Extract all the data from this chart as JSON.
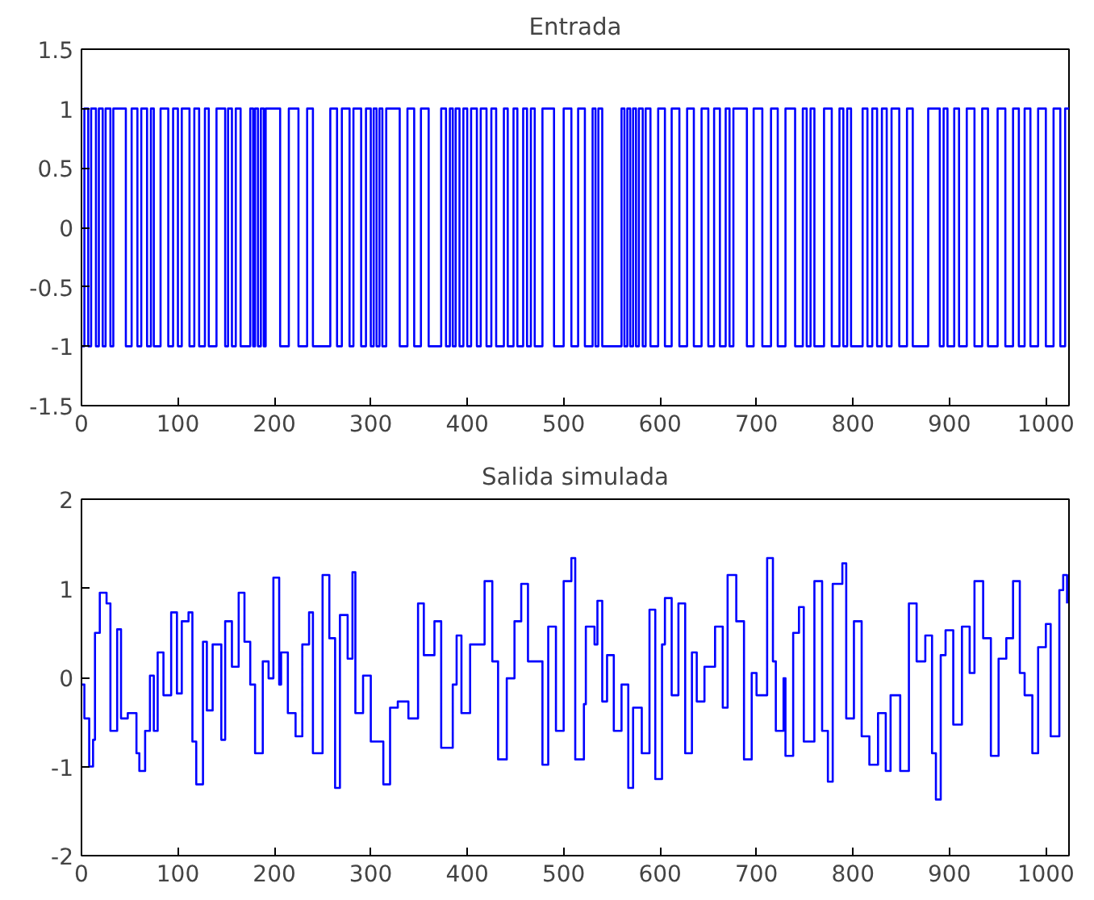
{
  "chart_data": [
    {
      "type": "step",
      "title": "Entrada",
      "xlim": [
        0,
        1024
      ],
      "ylim": [
        -1.5,
        1.5
      ],
      "xticks": [
        0,
        100,
        200,
        300,
        400,
        500,
        600,
        700,
        800,
        900,
        1000
      ],
      "yticks": [
        -1.5,
        -1,
        -0.5,
        0,
        0.5,
        1,
        1.5
      ],
      "grid": false,
      "series": [
        {
          "color": "#0000ff",
          "x": [
            0,
            3,
            7,
            10,
            15,
            18,
            22,
            25,
            30,
            33,
            46,
            52,
            58,
            62,
            68,
            72,
            75,
            82,
            90,
            95,
            100,
            104,
            112,
            117,
            122,
            128,
            132,
            140,
            149,
            152,
            156,
            160,
            165,
            175,
            178,
            180,
            183,
            186,
            189,
            191,
            206,
            215,
            225,
            234,
            240,
            258,
            265,
            270,
            278,
            282,
            290,
            295,
            300,
            303,
            306,
            309,
            312,
            316,
            330,
            338,
            345,
            352,
            360,
            373,
            378,
            382,
            385,
            388,
            392,
            396,
            400,
            404,
            410,
            414,
            420,
            425,
            430,
            438,
            442,
            448,
            452,
            458,
            462,
            466,
            470,
            478,
            490,
            500,
            508,
            515,
            522,
            530,
            533,
            536,
            540,
            560,
            563,
            566,
            569,
            572,
            575,
            578,
            582,
            585,
            590,
            598,
            605,
            612,
            620,
            628,
            635,
            643,
            650,
            656,
            662,
            668,
            672,
            676,
            690,
            697,
            706,
            715,
            722,
            730,
            740,
            748,
            752,
            756,
            760,
            770,
            778,
            786,
            790,
            794,
            798,
            810,
            815,
            820,
            825,
            830,
            835,
            840,
            848,
            856,
            862,
            878,
            890,
            894,
            898,
            905,
            910,
            918,
            926,
            934,
            940,
            950,
            958,
            966,
            972,
            978,
            984,
            992,
            1000,
            1008,
            1015,
            1020,
            1024
          ],
          "values": [
            -1,
            1,
            -1,
            1,
            -1,
            1,
            -1,
            1,
            -1,
            1,
            -1,
            1,
            -1,
            1,
            -1,
            1,
            -1,
            1,
            -1,
            1,
            -1,
            1,
            -1,
            1,
            -1,
            1,
            -1,
            1,
            -1,
            1,
            -1,
            1,
            -1,
            1,
            -1,
            1,
            -1,
            1,
            -1,
            1,
            -1,
            1,
            -1,
            1,
            -1,
            1,
            -1,
            1,
            -1,
            1,
            -1,
            1,
            -1,
            1,
            -1,
            1,
            -1,
            1,
            -1,
            1,
            -1,
            1,
            -1,
            1,
            -1,
            1,
            -1,
            1,
            -1,
            1,
            -1,
            1,
            -1,
            1,
            -1,
            1,
            -1,
            1,
            -1,
            1,
            -1,
            1,
            -1,
            1,
            -1,
            1,
            -1,
            1,
            -1,
            1,
            -1,
            1,
            -1,
            1,
            -1,
            1,
            -1,
            1,
            -1,
            1,
            -1,
            1,
            -1,
            1,
            -1,
            1,
            -1,
            1,
            -1,
            1,
            -1,
            1,
            -1,
            1,
            -1,
            1,
            -1,
            1,
            -1,
            1,
            -1,
            1,
            -1,
            1,
            -1,
            1,
            -1,
            1,
            -1,
            1,
            -1,
            1,
            -1,
            1,
            -1,
            1,
            -1,
            1,
            -1,
            1,
            -1,
            1,
            -1,
            1,
            -1,
            1,
            -1,
            1,
            -1,
            1,
            -1,
            1,
            -1,
            1,
            -1,
            1,
            -1,
            1,
            -1,
            1,
            -1,
            1,
            -1,
            1,
            -1,
            1,
            1
          ]
        }
      ]
    },
    {
      "type": "step",
      "title": "Salida simulada",
      "xlim": [
        0,
        1024
      ],
      "ylim": [
        -2,
        2
      ],
      "xticks": [
        0,
        100,
        200,
        300,
        400,
        500,
        600,
        700,
        800,
        900,
        1000
      ],
      "yticks": [
        -2,
        -1,
        0,
        1,
        2
      ],
      "grid": false,
      "series": [
        {
          "color": "#0000ff",
          "x": [
            0,
            3,
            8,
            12,
            14,
            19,
            26,
            30,
            37,
            41,
            48,
            57,
            60,
            66,
            71,
            75,
            79,
            85,
            93,
            99,
            104,
            111,
            115,
            119,
            126,
            130,
            136,
            145,
            149,
            156,
            163,
            169,
            175,
            180,
            188,
            194,
            199,
            205,
            207,
            214,
            222,
            229,
            236,
            240,
            250,
            257,
            263,
            268,
            276,
            281,
            284,
            292,
            300,
            313,
            320,
            328,
            339,
            349,
            355,
            366,
            373,
            385,
            389,
            394,
            403,
            418,
            426,
            432,
            441,
            449,
            456,
            463,
            473,
            478,
            484,
            492,
            500,
            508,
            512,
            521,
            523,
            532,
            535,
            540,
            545,
            552,
            560,
            567,
            572,
            581,
            589,
            595,
            602,
            605,
            612,
            619,
            626,
            633,
            638,
            646,
            657,
            665,
            670,
            679,
            687,
            695,
            700,
            711,
            717,
            720,
            728,
            730,
            738,
            744,
            749,
            760,
            768,
            774,
            779,
            789,
            793,
            801,
            809,
            817,
            826,
            834,
            839,
            849,
            858,
            866,
            875,
            882,
            886,
            891,
            896,
            904,
            913,
            921,
            926,
            935,
            943,
            951,
            959,
            966,
            973,
            978,
            986,
            992,
            1000,
            1005,
            1014,
            1018,
            1022
          ],
          "values": [
            -0.08,
            -0.46,
            -1.0,
            -0.7,
            0.5,
            0.95,
            0.83,
            -0.6,
            0.54,
            -0.46,
            -0.4,
            -0.85,
            -1.05,
            -0.6,
            0.02,
            -0.6,
            0.28,
            -0.2,
            0.73,
            -0.18,
            0.63,
            0.73,
            -0.72,
            -1.2,
            0.4,
            -0.37,
            0.37,
            -0.7,
            0.63,
            0.12,
            0.95,
            0.4,
            -0.08,
            -0.85,
            0.18,
            -0.01,
            1.12,
            -0.08,
            0.28,
            -0.4,
            -0.66,
            0.37,
            0.73,
            -0.85,
            1.15,
            0.44,
            -1.24,
            0.7,
            0.21,
            1.18,
            -0.4,
            0.02,
            -0.72,
            -1.2,
            -0.34,
            -0.27,
            -0.46,
            0.83,
            0.25,
            0.63,
            -0.79,
            -0.08,
            0.47,
            -0.4,
            0.37,
            1.08,
            0.18,
            -0.92,
            -0.01,
            0.63,
            1.05,
            0.18,
            0.18,
            -0.98,
            0.57,
            -0.6,
            1.08,
            1.34,
            -0.92,
            -0.3,
            0.57,
            0.37,
            0.86,
            -0.27,
            0.25,
            -0.6,
            -0.08,
            -1.24,
            -0.34,
            -0.85,
            0.76,
            -1.14,
            0.37,
            0.89,
            -0.2,
            0.83,
            -0.85,
            0.28,
            -0.27,
            0.12,
            0.57,
            -0.34,
            1.15,
            0.63,
            -0.92,
            0.05,
            -0.2,
            1.34,
            0.18,
            -0.6,
            -0.01,
            -0.88,
            0.5,
            0.79,
            -0.72,
            1.08,
            -0.6,
            -1.17,
            1.05,
            1.28,
            -0.46,
            0.63,
            -0.66,
            -0.98,
            -0.4,
            -1.05,
            -0.2,
            -1.05,
            0.83,
            0.18,
            0.47,
            -0.85,
            -1.37,
            0.25,
            0.53,
            -0.53,
            0.57,
            0.05,
            1.08,
            0.44,
            -0.88,
            0.21,
            0.44,
            1.08,
            0.05,
            -0.2,
            -0.85,
            0.34,
            0.6,
            -0.66,
            0.98,
            1.15,
            0.83
          ]
        }
      ]
    }
  ]
}
